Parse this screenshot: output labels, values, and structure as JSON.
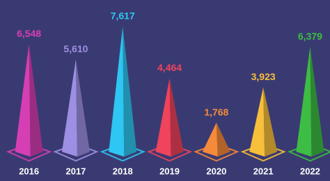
{
  "chart_data": {
    "type": "pyramid",
    "categories": [
      "2016",
      "2017",
      "2018",
      "2019",
      "2020",
      "2021",
      "2022"
    ],
    "values": [
      6548,
      5610,
      7617,
      4464,
      1768,
      3923,
      6379
    ],
    "value_labels": [
      "6,548",
      "5,610",
      "7,617",
      "4,464",
      "1,768",
      "3,923",
      "6,379"
    ],
    "colors": [
      "#d63fb4",
      "#9d8fe3",
      "#2ec6f2",
      "#f0435c",
      "#f58a3a",
      "#f7bf3a",
      "#3dbd43"
    ]
  }
}
